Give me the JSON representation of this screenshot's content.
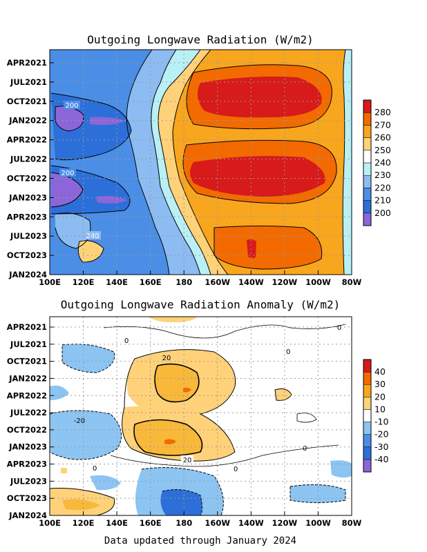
{
  "footer": "Data updated through January 2024",
  "chart_data": [
    {
      "type": "heatmap",
      "title": "Outgoing Longwave Radiation (W/m2)",
      "x_ticks": [
        "100E",
        "120E",
        "140E",
        "160E",
        "180",
        "160W",
        "140W",
        "120W",
        "100W",
        "80W"
      ],
      "y_ticks": [
        "APR2021",
        "JUL2021",
        "OCT2021",
        "JAN2022",
        "APR2022",
        "JUL2022",
        "OCT2022",
        "JAN2023",
        "APR2023",
        "JUL2023",
        "OCT2023",
        "JAN2024"
      ],
      "colorbar": {
        "ticks": [
          "200",
          "210",
          "220",
          "230",
          "240",
          "250",
          "260",
          "270",
          "280"
        ],
        "colors": [
          "#8c66d9",
          "#2d6fd8",
          "#4a8ee6",
          "#8cbcf2",
          "#b9f0f6",
          "#ffffff",
          "#ffd27a",
          "#f8a61e",
          "#f26a00",
          "#d71a1a"
        ]
      },
      "contour_labels": [
        "200",
        "200",
        "240"
      ],
      "colors": {
        "low": "#4a8ee6",
        "high": "#f8a61e",
        "peak": "#d71a1a"
      }
    },
    {
      "type": "heatmap",
      "title": "Outgoing Longwave Radiation Anomaly (W/m2)",
      "x_ticks": [
        "100E",
        "120E",
        "140E",
        "160E",
        "180",
        "160W",
        "140W",
        "120W",
        "100W",
        "80W"
      ],
      "y_ticks": [
        "APR2021",
        "JUL2021",
        "OCT2021",
        "JAN2022",
        "APR2022",
        "JUL2022",
        "OCT2022",
        "JAN2023",
        "APR2023",
        "JUL2023",
        "OCT2023",
        "JAN2024"
      ],
      "colorbar": {
        "ticks": [
          "-40",
          "-30",
          "-20",
          "-10",
          "10",
          "20",
          "30",
          "40"
        ],
        "colors": [
          "#8c66d9",
          "#2d6fd8",
          "#4a8ee6",
          "#8cc4f2",
          "#ffffff",
          "#ffd27a",
          "#f8a61e",
          "#f26a00",
          "#d71a1a"
        ]
      },
      "contour_labels": [
        "20",
        "-20",
        "20",
        "0",
        "0",
        "0",
        "0",
        "0",
        "0"
      ],
      "colors": {
        "neg": "#8cc4f2",
        "pos": "#f8b83a"
      }
    }
  ]
}
